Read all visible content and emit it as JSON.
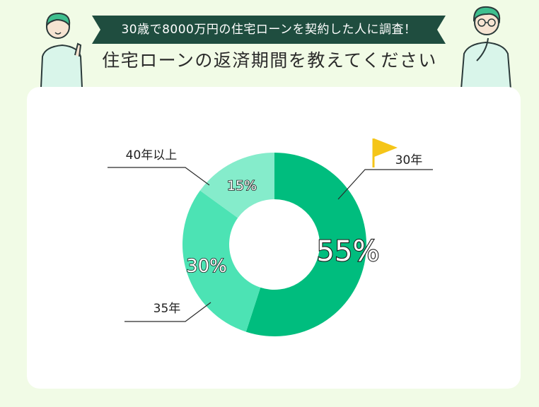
{
  "banner": {
    "text": "30歳で8000万円の住宅ローンを契約した人に調査！"
  },
  "title": "住宅ローンの返済期間を教えてください",
  "colors": {
    "background": "#f1fbe6",
    "banner": "#1f4d3f",
    "flag": "#f5c518"
  },
  "icons": [
    "person-pointing-illustration",
    "person-thinking-illustration",
    "flag-icon"
  ],
  "chart_data": {
    "type": "pie",
    "variant": "donut",
    "categories": [
      "30年",
      "35年",
      "40年以上"
    ],
    "values": [
      55,
      30,
      15
    ],
    "value_labels": [
      "55%",
      "30%",
      "15%"
    ],
    "colors": [
      "#00bd7e",
      "#4ce3b4",
      "#85eccb"
    ],
    "highlight": "30年"
  }
}
